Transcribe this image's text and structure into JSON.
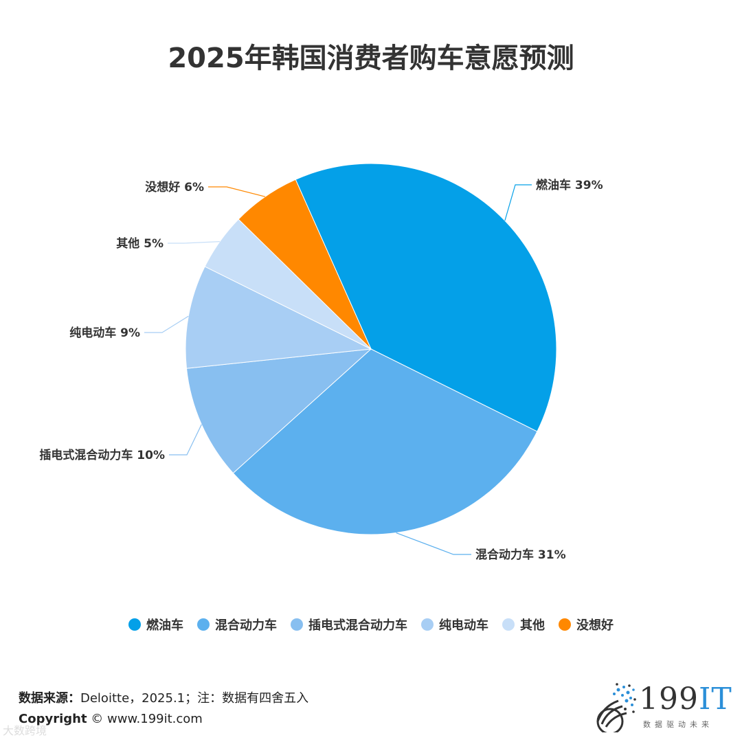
{
  "chart_data": {
    "type": "pie",
    "title": "2025年韩国消费者购车意愿预测",
    "slices": [
      {
        "name": "燃油车",
        "value": 39,
        "label": "燃油车 39%",
        "color": "#04A0E8"
      },
      {
        "name": "混合动力车",
        "value": 31,
        "label": "混合动力车 31%",
        "color": "#5CB0EE"
      },
      {
        "name": "插电式混合动力车",
        "value": 10,
        "label": "插电式混合动力车 10%",
        "color": "#88BFF0"
      },
      {
        "name": "纯电动车",
        "value": 9,
        "label": "纯电动车 9%",
        "color": "#A8CEF4"
      },
      {
        "name": "其他",
        "value": 5,
        "label": "其他 5%",
        "color": "#C8DFF8"
      },
      {
        "name": "没想好",
        "value": 6,
        "label": "没想好 6%",
        "color": "#FF8800"
      }
    ],
    "legend_position": "bottom"
  },
  "legend": {
    "items": [
      "燃油车",
      "混合动力车",
      "插电式混合动力车",
      "纯电动车",
      "其他",
      "没想好"
    ]
  },
  "footer": {
    "source_label": "数据来源：",
    "source_text": "Deloitte，2025.1；注：数据有四舍五入",
    "copyright_label": "Copyright",
    "copyright_text": "© www.199it.com",
    "watermark": "大数跨境"
  },
  "logo": {
    "text_digits": "199",
    "text_it": "IT",
    "subtitle": "数据驱动未来"
  }
}
